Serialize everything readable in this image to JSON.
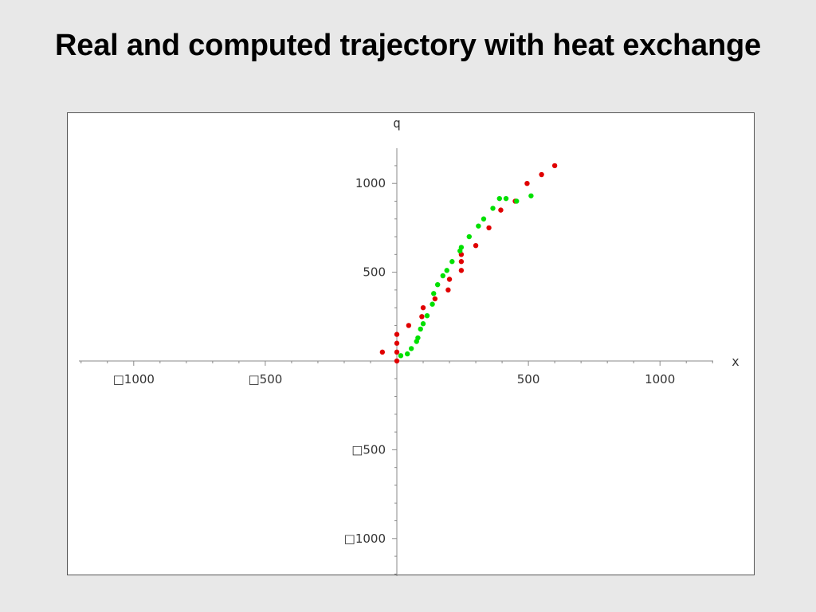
{
  "slide": {
    "title": "Real and computed trajectory with heat exchange"
  },
  "chart_data": {
    "type": "scatter",
    "title": "",
    "xlabel": "x",
    "ylabel": "q",
    "xlim": [
      -1200,
      1200
    ],
    "ylim": [
      -1220,
      1200
    ],
    "x_ticks": [
      {
        "value": -1000,
        "label": "□1000"
      },
      {
        "value": -500,
        "label": "□500"
      },
      {
        "value": 500,
        "label": "500"
      },
      {
        "value": 1000,
        "label": "1000"
      }
    ],
    "y_ticks": [
      {
        "value": 1000,
        "label": "1000"
      },
      {
        "value": 500,
        "label": "500"
      },
      {
        "value": -500,
        "label": "□500"
      },
      {
        "value": -1000,
        "label": "□1000"
      }
    ],
    "x_minor_step": 100,
    "y_minor_step": 100,
    "grid": false,
    "series": [
      {
        "color": "#e00000",
        "points": [
          [
            -55,
            50
          ],
          [
            0,
            0
          ],
          [
            0,
            50
          ],
          [
            0,
            100
          ],
          [
            0,
            150
          ],
          [
            45,
            200
          ],
          [
            95,
            250
          ],
          [
            100,
            300
          ],
          [
            145,
            350
          ],
          [
            195,
            400
          ],
          [
            200,
            460
          ],
          [
            245,
            510
          ],
          [
            245,
            560
          ],
          [
            245,
            600
          ],
          [
            300,
            650
          ],
          [
            350,
            750
          ],
          [
            395,
            850
          ],
          [
            450,
            900
          ],
          [
            495,
            1000
          ],
          [
            550,
            1050
          ],
          [
            600,
            1100
          ]
        ]
      },
      {
        "color": "#00e000",
        "points": [
          [
            15,
            30
          ],
          [
            40,
            40
          ],
          [
            55,
            70
          ],
          [
            75,
            110
          ],
          [
            80,
            130
          ],
          [
            90,
            180
          ],
          [
            100,
            210
          ],
          [
            115,
            255
          ],
          [
            135,
            320
          ],
          [
            140,
            380
          ],
          [
            155,
            430
          ],
          [
            175,
            480
          ],
          [
            190,
            510
          ],
          [
            210,
            560
          ],
          [
            240,
            620
          ],
          [
            245,
            640
          ],
          [
            275,
            700
          ],
          [
            310,
            760
          ],
          [
            330,
            800
          ],
          [
            365,
            860
          ],
          [
            390,
            915
          ],
          [
            415,
            915
          ],
          [
            455,
            900
          ],
          [
            510,
            930
          ]
        ]
      }
    ]
  }
}
